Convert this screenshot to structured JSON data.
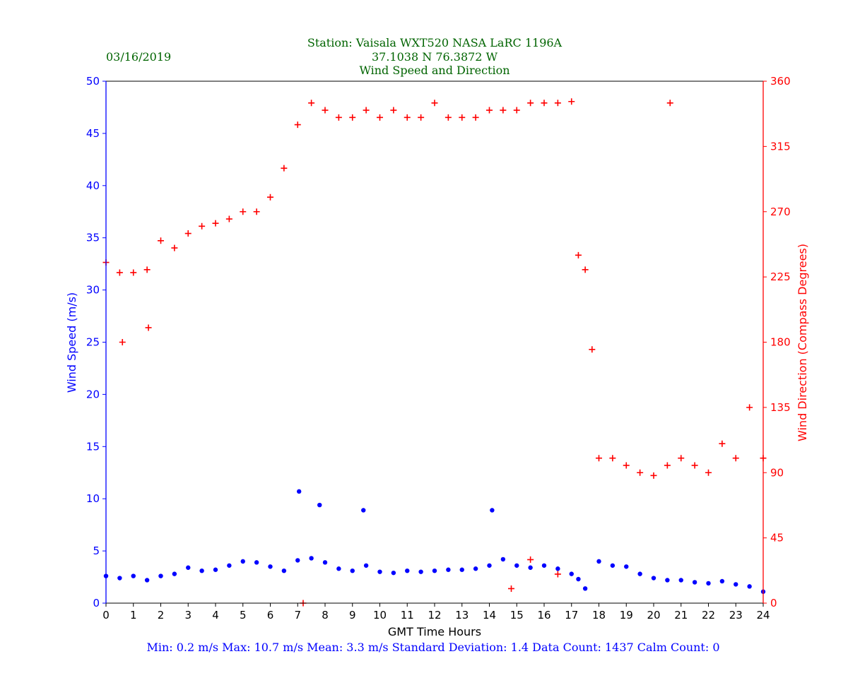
{
  "header": {
    "date": "03/16/2019",
    "station_line": "Station:  Vaisala WXT520  NASA LaRC 1196A",
    "coords_line": "37.1038 N 76.3872 W",
    "subtitle": "Wind Speed and Direction"
  },
  "footer": {
    "stats_line": "Min: 0.2 m/s   Max: 10.7 m/s   Mean: 3.3 m/s  Standard Deviation: 1.4  Data Count: 1437  Calm Count:  0"
  },
  "chart_data": {
    "type": "scatter",
    "title": "Station:  Vaisala WXT520  NASA LaRC 1196A / 37.1038 N 76.3872 W / Wind Speed and Direction",
    "xlabel": "GMT Time Hours",
    "ylabel_left": "Wind Speed (m/s)",
    "ylabel_right": "Wind Direction (Compass Degrees)",
    "xlim": [
      0,
      24
    ],
    "ylim_left": [
      0,
      50
    ],
    "ylim_right": [
      0,
      360
    ],
    "x_ticks": [
      "0",
      "1",
      "2",
      "3",
      "4",
      "5",
      "6",
      "7",
      "8",
      "9",
      "10",
      "11",
      "12",
      "13",
      "14",
      "15",
      "16",
      "17",
      "18",
      "19",
      "20",
      "21",
      "22",
      "23",
      "24"
    ],
    "y_left_ticks": [
      "0",
      "5",
      "10",
      "15",
      "20",
      "25",
      "30",
      "35",
      "40",
      "45",
      "50"
    ],
    "y_right_ticks": [
      "0",
      "45",
      "90",
      "135",
      "180",
      "225",
      "270",
      "315",
      "360"
    ],
    "colors": {
      "speed": "#0000ff",
      "direction": "#ff0000",
      "title": "#006400"
    },
    "series": [
      {
        "name": "Wind Speed",
        "axis": "left",
        "marker": "dot",
        "x": [
          0.0,
          0.5,
          1.0,
          1.5,
          2.0,
          2.5,
          3.0,
          3.5,
          4.0,
          4.5,
          5.0,
          5.5,
          6.0,
          6.5,
          7.0,
          7.5,
          8.0,
          8.5,
          9.0,
          9.5,
          10.0,
          10.5,
          11.0,
          11.5,
          12.0,
          12.5,
          13.0,
          13.5,
          14.0,
          14.5,
          15.0,
          15.5,
          16.0,
          16.5,
          17.0,
          17.25,
          17.5,
          18.0,
          18.5,
          19.0,
          19.5,
          20.0,
          20.5,
          21.0,
          21.5,
          22.0,
          22.5,
          23.0,
          23.5,
          24.0,
          7.05,
          7.8,
          9.4,
          14.1
        ],
        "y": [
          2.6,
          2.4,
          2.6,
          2.2,
          2.6,
          2.8,
          3.4,
          3.1,
          3.2,
          3.6,
          4.0,
          3.9,
          3.5,
          3.1,
          4.1,
          4.3,
          3.9,
          3.3,
          3.1,
          3.6,
          3.0,
          2.9,
          3.1,
          3.0,
          3.1,
          3.2,
          3.2,
          3.3,
          3.6,
          4.2,
          3.6,
          3.4,
          3.6,
          3.3,
          2.8,
          2.3,
          1.4,
          4.0,
          3.6,
          3.5,
          2.8,
          2.4,
          2.2,
          2.2,
          2.0,
          1.9,
          2.1,
          1.8,
          1.6,
          1.1,
          10.7,
          9.4,
          8.9,
          8.9
        ]
      },
      {
        "name": "Wind Direction",
        "axis": "right",
        "marker": "plus",
        "x": [
          0.0,
          0.5,
          1.0,
          1.5,
          2.0,
          2.5,
          3.0,
          3.5,
          4.0,
          4.5,
          5.0,
          5.5,
          6.0,
          6.5,
          7.0,
          7.5,
          8.0,
          8.5,
          9.0,
          9.5,
          10.0,
          10.5,
          11.0,
          11.5,
          12.0,
          12.5,
          13.0,
          13.5,
          14.0,
          14.5,
          15.0,
          15.5,
          16.0,
          16.5,
          17.0,
          17.25,
          17.5,
          17.75,
          18.0,
          18.5,
          19.0,
          19.5,
          20.0,
          20.5,
          21.0,
          21.5,
          22.0,
          22.5,
          23.0,
          23.5,
          24.0,
          0.6,
          1.55,
          7.2,
          20.6,
          14.8,
          15.5,
          16.5
        ],
        "y": [
          235,
          228,
          228,
          230,
          250,
          245,
          255,
          260,
          262,
          265,
          270,
          270,
          280,
          300,
          330,
          345,
          340,
          335,
          335,
          340,
          335,
          340,
          335,
          335,
          345,
          335,
          335,
          335,
          340,
          340,
          340,
          345,
          345,
          345,
          346,
          240,
          230,
          175,
          100,
          100,
          95,
          90,
          88,
          95,
          100,
          95,
          90,
          110,
          100,
          135,
          100,
          180,
          190,
          0,
          345,
          10,
          30,
          20
        ]
      }
    ]
  }
}
